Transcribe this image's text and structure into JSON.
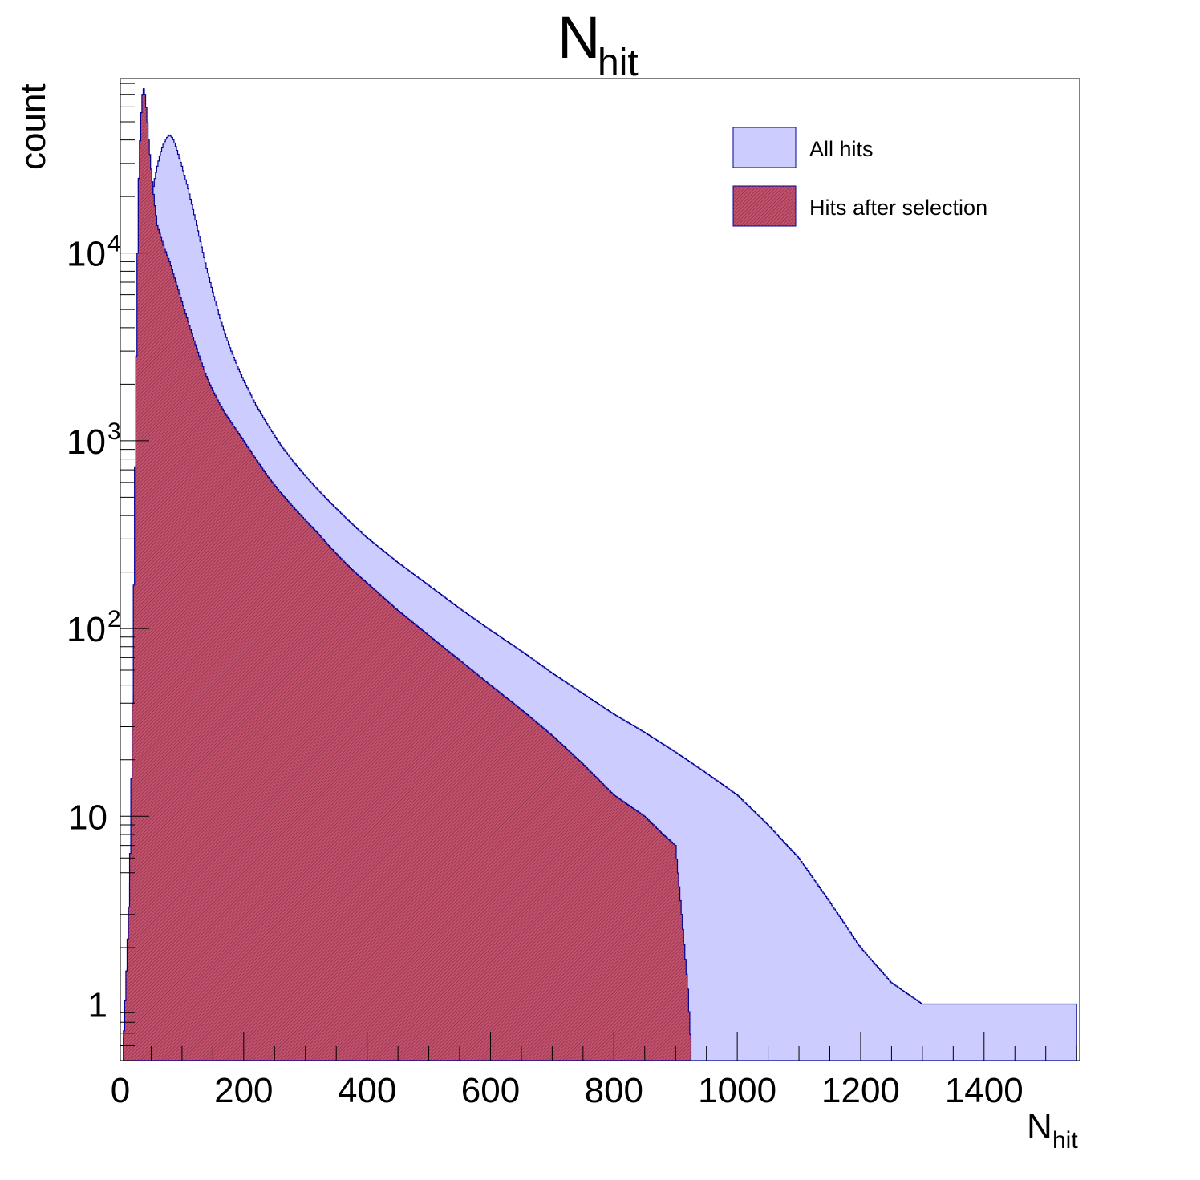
{
  "chart_data": {
    "type": "histogram",
    "title": {
      "main": "N",
      "sub": "hit"
    },
    "xlabel": {
      "main": "N",
      "sub": "hit"
    },
    "ylabel": "count",
    "xlim": [
      0,
      1555
    ],
    "ylim": [
      0.5,
      85000
    ],
    "yscale": "log",
    "grid": false,
    "legend_position": "top-right",
    "x_ticks": [
      0,
      200,
      400,
      600,
      800,
      1000,
      1200,
      1400
    ],
    "x_tick_labels": [
      "0",
      "200",
      "400",
      "600",
      "800",
      "1000",
      "1200",
      "1400"
    ],
    "y_ticks": [
      {
        "value": 1,
        "base": "1",
        "exp": ""
      },
      {
        "value": 10,
        "base": "10",
        "exp": ""
      },
      {
        "value": 100,
        "base": "10",
        "exp": "2"
      },
      {
        "value": 1000,
        "base": "10",
        "exp": "3"
      },
      {
        "value": 10000,
        "base": "10",
        "exp": "4"
      }
    ],
    "series": [
      {
        "name": "All hits",
        "fill": "#ccccff",
        "line": "#000099",
        "points": [
          [
            5,
            0.6
          ],
          [
            10,
            1
          ],
          [
            15,
            3
          ],
          [
            20,
            20
          ],
          [
            25,
            150
          ],
          [
            30,
            900
          ],
          [
            35,
            2800
          ],
          [
            40,
            6500
          ],
          [
            45,
            12000
          ],
          [
            50,
            18000
          ],
          [
            55,
            24000
          ],
          [
            60,
            29000
          ],
          [
            65,
            34000
          ],
          [
            70,
            38000
          ],
          [
            75,
            41000
          ],
          [
            80,
            42500
          ],
          [
            85,
            41000
          ],
          [
            90,
            37000
          ],
          [
            100,
            29000
          ],
          [
            110,
            22000
          ],
          [
            120,
            16000
          ],
          [
            130,
            11500
          ],
          [
            140,
            8300
          ],
          [
            150,
            6200
          ],
          [
            160,
            4700
          ],
          [
            170,
            3700
          ],
          [
            180,
            3000
          ],
          [
            190,
            2500
          ],
          [
            200,
            2100
          ],
          [
            220,
            1550
          ],
          [
            240,
            1200
          ],
          [
            260,
            950
          ],
          [
            280,
            780
          ],
          [
            300,
            650
          ],
          [
            320,
            550
          ],
          [
            340,
            470
          ],
          [
            360,
            405
          ],
          [
            380,
            350
          ],
          [
            400,
            305
          ],
          [
            450,
            225
          ],
          [
            500,
            170
          ],
          [
            550,
            128
          ],
          [
            600,
            98
          ],
          [
            650,
            76
          ],
          [
            700,
            58
          ],
          [
            750,
            45
          ],
          [
            800,
            35
          ],
          [
            850,
            28
          ],
          [
            900,
            22
          ],
          [
            950,
            17
          ],
          [
            1000,
            13
          ],
          [
            1050,
            9
          ],
          [
            1100,
            6
          ],
          [
            1150,
            3.5
          ],
          [
            1200,
            2
          ],
          [
            1250,
            1.3
          ],
          [
            1300,
            1
          ],
          [
            1350,
            1
          ],
          [
            1400,
            1
          ],
          [
            1450,
            1
          ],
          [
            1500,
            1
          ],
          [
            1550,
            1
          ]
        ]
      },
      {
        "name": "Hits after selection",
        "fill": "#b03a5b",
        "line": "#000099",
        "points": [
          [
            5,
            0.6
          ],
          [
            10,
            1.5
          ],
          [
            15,
            4
          ],
          [
            20,
            40
          ],
          [
            25,
            1500
          ],
          [
            28,
            10000
          ],
          [
            30,
            25000
          ],
          [
            33,
            50000
          ],
          [
            36,
            70000
          ],
          [
            38,
            75000
          ],
          [
            40,
            70000
          ],
          [
            43,
            55000
          ],
          [
            46,
            40000
          ],
          [
            50,
            28000
          ],
          [
            55,
            19000
          ],
          [
            60,
            14000
          ],
          [
            70,
            11000
          ],
          [
            80,
            9000
          ],
          [
            90,
            7000
          ],
          [
            100,
            5500
          ],
          [
            110,
            4300
          ],
          [
            120,
            3400
          ],
          [
            130,
            2700
          ],
          [
            140,
            2200
          ],
          [
            150,
            1850
          ],
          [
            160,
            1600
          ],
          [
            170,
            1400
          ],
          [
            180,
            1250
          ],
          [
            190,
            1120
          ],
          [
            200,
            1000
          ],
          [
            220,
            800
          ],
          [
            240,
            640
          ],
          [
            260,
            530
          ],
          [
            280,
            445
          ],
          [
            300,
            378
          ],
          [
            320,
            322
          ],
          [
            340,
            272
          ],
          [
            360,
            232
          ],
          [
            380,
            200
          ],
          [
            400,
            175
          ],
          [
            450,
            125
          ],
          [
            500,
            92
          ],
          [
            550,
            68
          ],
          [
            600,
            50
          ],
          [
            650,
            37
          ],
          [
            700,
            27
          ],
          [
            750,
            19
          ],
          [
            800,
            13
          ],
          [
            850,
            10
          ],
          [
            880,
            8
          ],
          [
            900,
            7
          ],
          [
            910,
            3
          ],
          [
            920,
            1.2
          ],
          [
            925,
            0.6
          ]
        ]
      }
    ]
  }
}
